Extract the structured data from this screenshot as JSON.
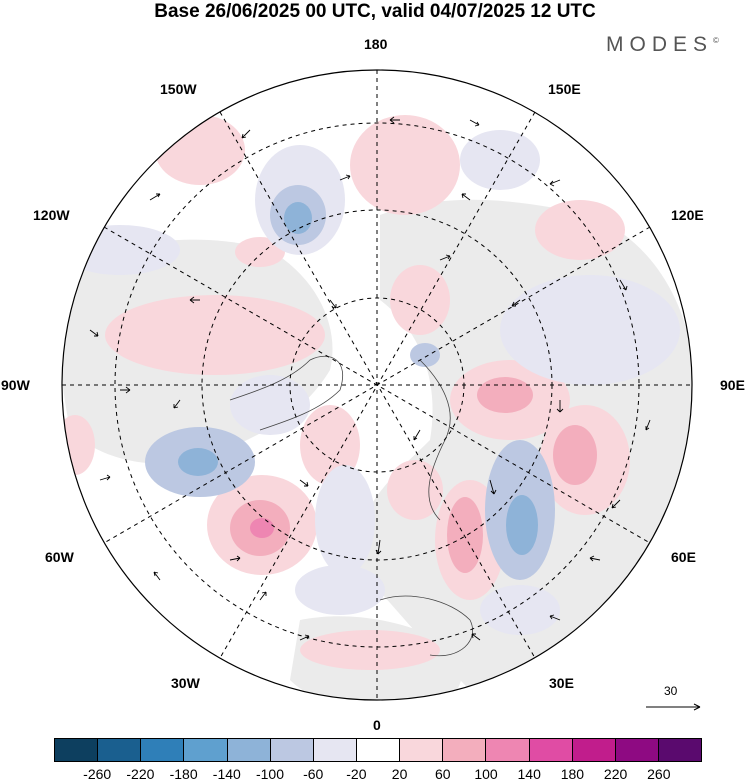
{
  "title": "Base 26/06/2025 00 UTC, valid 04/07/2025 12 UTC",
  "brand": "MODES",
  "brand_mark": "©",
  "longitude_labels": {
    "n180": "180",
    "w150": "150W",
    "e150": "150E",
    "w120": "120W",
    "e120": "120E",
    "w90": "90W",
    "e90": "90E",
    "w60": "60W",
    "e60": "60E",
    "w30": "30W",
    "e30": "30E",
    "s0": "0"
  },
  "reference_vector": {
    "label": "30"
  },
  "legend": {
    "colors": [
      "#0d3f5f",
      "#1a5f8f",
      "#2f7fb8",
      "#5fa0cf",
      "#8eb3d8",
      "#bcc8e2",
      "#e6e6f2",
      "#ffffff",
      "#f9d7dc",
      "#f3aebd",
      "#ee86b2",
      "#e04ca4",
      "#c11d8c",
      "#8e0a82",
      "#5a0a6e"
    ],
    "ticks": [
      "-260",
      "-220",
      "-180",
      "-140",
      "-100",
      "-60",
      "-20",
      "20",
      "60",
      "100",
      "140",
      "180",
      "220",
      "260"
    ]
  }
}
